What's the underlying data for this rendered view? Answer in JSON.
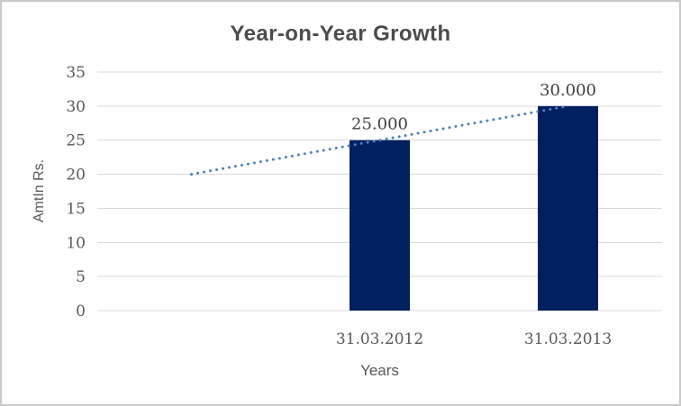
{
  "title": "Year-on-Year Growth",
  "chart_data": {
    "type": "bar",
    "title": "Year-on-Year Growth",
    "xlabel": "Years",
    "ylabel": "AmtIn Rs.",
    "categories": [
      "31.03.2012",
      "31.03.2013"
    ],
    "values": [
      25,
      30
    ],
    "data_labels": [
      "25.000",
      "30.000"
    ],
    "ylim": [
      0,
      35
    ],
    "yticks": [
      35,
      30,
      25,
      20,
      15,
      10,
      5,
      0
    ],
    "grid": true,
    "legend": "none",
    "bar_color": "#002060",
    "gridline_color": "#d9d9d9",
    "axis_text_color": "#595959",
    "data_label_color": "#404040",
    "category_slots": 3,
    "bar_slot_indices": [
      1,
      2
    ],
    "trendline": {
      "type": "linear",
      "style": "dotted",
      "color": "#4f81bd",
      "points": [
        [
          0,
          20
        ],
        [
          2,
          30
        ]
      ]
    }
  }
}
